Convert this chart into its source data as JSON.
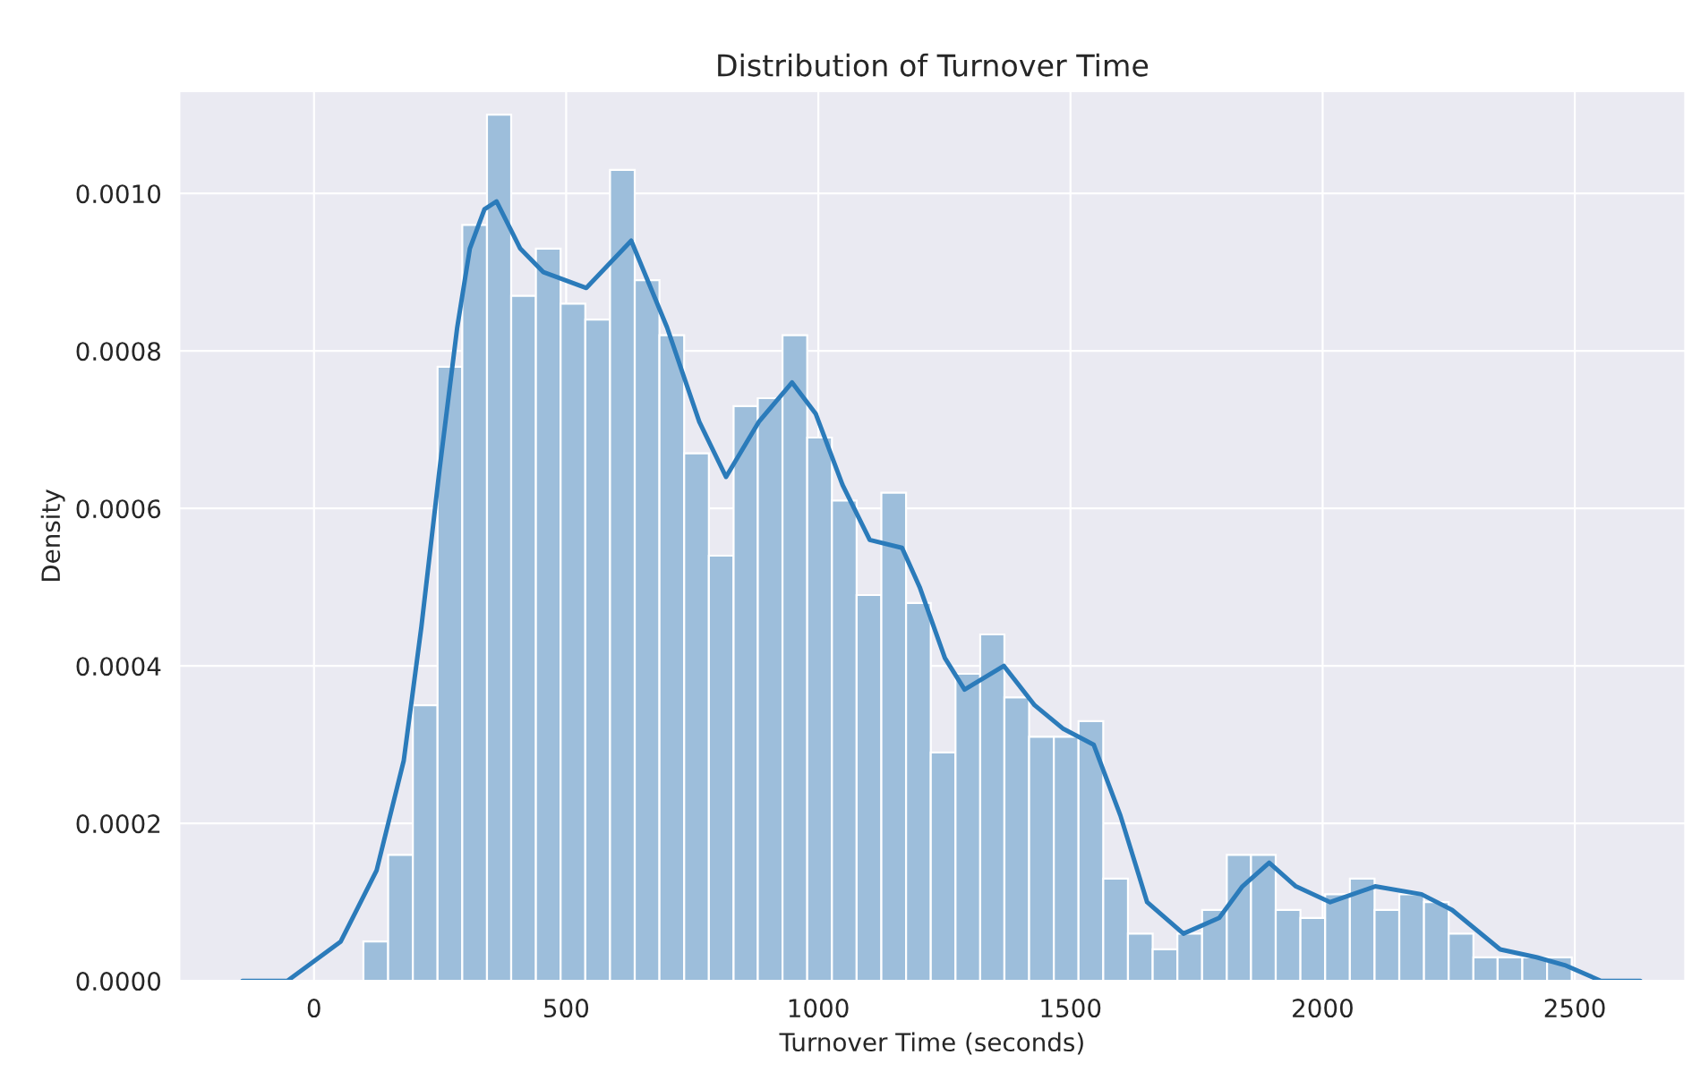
{
  "chart_data": {
    "type": "histogram",
    "title": "Distribution of Turnover Time",
    "xlabel": "Turnover Time (seconds)",
    "ylabel": "Density",
    "bins": [
      98,
      147,
      196,
      245,
      294,
      343,
      391,
      440,
      489,
      538,
      587,
      636,
      685,
      734,
      783,
      832,
      880,
      929,
      978,
      1027,
      1076,
      1125,
      1174,
      1223,
      1272,
      1321,
      1369,
      1418,
      1467,
      1516,
      1565,
      1614,
      1663,
      1712,
      1761,
      1810,
      1858,
      1907,
      1956,
      2005,
      2054,
      2103,
      2152,
      2201,
      2250,
      2299,
      2347,
      2396,
      2445,
      2494
    ],
    "values": [
      5e-05,
      0.00016,
      0.00035,
      0.00078,
      0.00096,
      0.0011,
      0.00087,
      0.00093,
      0.00086,
      0.00084,
      0.00103,
      0.00089,
      0.00082,
      0.00067,
      0.00054,
      0.00073,
      0.00074,
      0.00082,
      0.00069,
      0.00061,
      0.00049,
      0.00062,
      0.00048,
      0.00029,
      0.00039,
      0.00044,
      0.00036,
      0.00031,
      0.00031,
      0.00033,
      0.00013,
      6e-05,
      4e-05,
      6e-05,
      9e-05,
      0.00016,
      0.00016,
      9e-05,
      8e-05,
      0.00011,
      0.00013,
      9e-05,
      0.00011,
      0.0001,
      6e-05,
      3e-05,
      3e-05,
      3e-05,
      3e-05
    ],
    "color": "#9dbedb",
    "series": [
      {
        "type": "line",
        "color": "#2b7bba",
        "x": [
          -142,
          -53,
          53,
          124,
          178,
          213,
          249,
          284,
          309,
          338,
          362,
          409,
          455,
          540,
          629,
          700,
          764,
          817,
          882,
          948,
          995,
          1048,
          1102,
          1166,
          1201,
          1251,
          1290,
          1368,
          1429,
          1486,
          1546,
          1599,
          1652,
          1724,
          1795,
          1841,
          1894,
          1947,
          2015,
          2104,
          2196,
          2257,
          2352,
          2424,
          2480,
          2552,
          2630
        ],
        "values": [
          0.0,
          0.0,
          5e-05,
          0.00014,
          0.00028,
          0.00045,
          0.00065,
          0.00083,
          0.00093,
          0.00098,
          0.00099,
          0.00093,
          0.0009,
          0.00088,
          0.00094,
          0.00083,
          0.00071,
          0.00064,
          0.00071,
          0.00076,
          0.00072,
          0.00063,
          0.00056,
          0.00055,
          0.0005,
          0.00041,
          0.00037,
          0.0004,
          0.00035,
          0.00032,
          0.0003,
          0.00021,
          0.0001,
          6e-05,
          8e-05,
          0.00012,
          0.00015,
          0.00012,
          0.0001,
          0.00012,
          0.00011,
          9e-05,
          4e-05,
          3e-05,
          2e-05,
          0.0,
          0.0
        ]
      }
    ],
    "xlim": [
      -267,
      2719
    ],
    "xticks": [
      0,
      500,
      1000,
      1500,
      2000,
      2500
    ],
    "ylim": [
      0,
      0.00113
    ],
    "yticks": [
      {
        "value": 0,
        "label": "0.0000"
      },
      {
        "value": 0.0002,
        "label": "0.0002"
      },
      {
        "value": 0.0004,
        "label": "0.0004"
      },
      {
        "value": 0.0006,
        "label": "0.0006"
      },
      {
        "value": 0.0008,
        "label": "0.0008"
      },
      {
        "value": 0.001,
        "label": "0.0010"
      }
    ],
    "grid": true
  }
}
